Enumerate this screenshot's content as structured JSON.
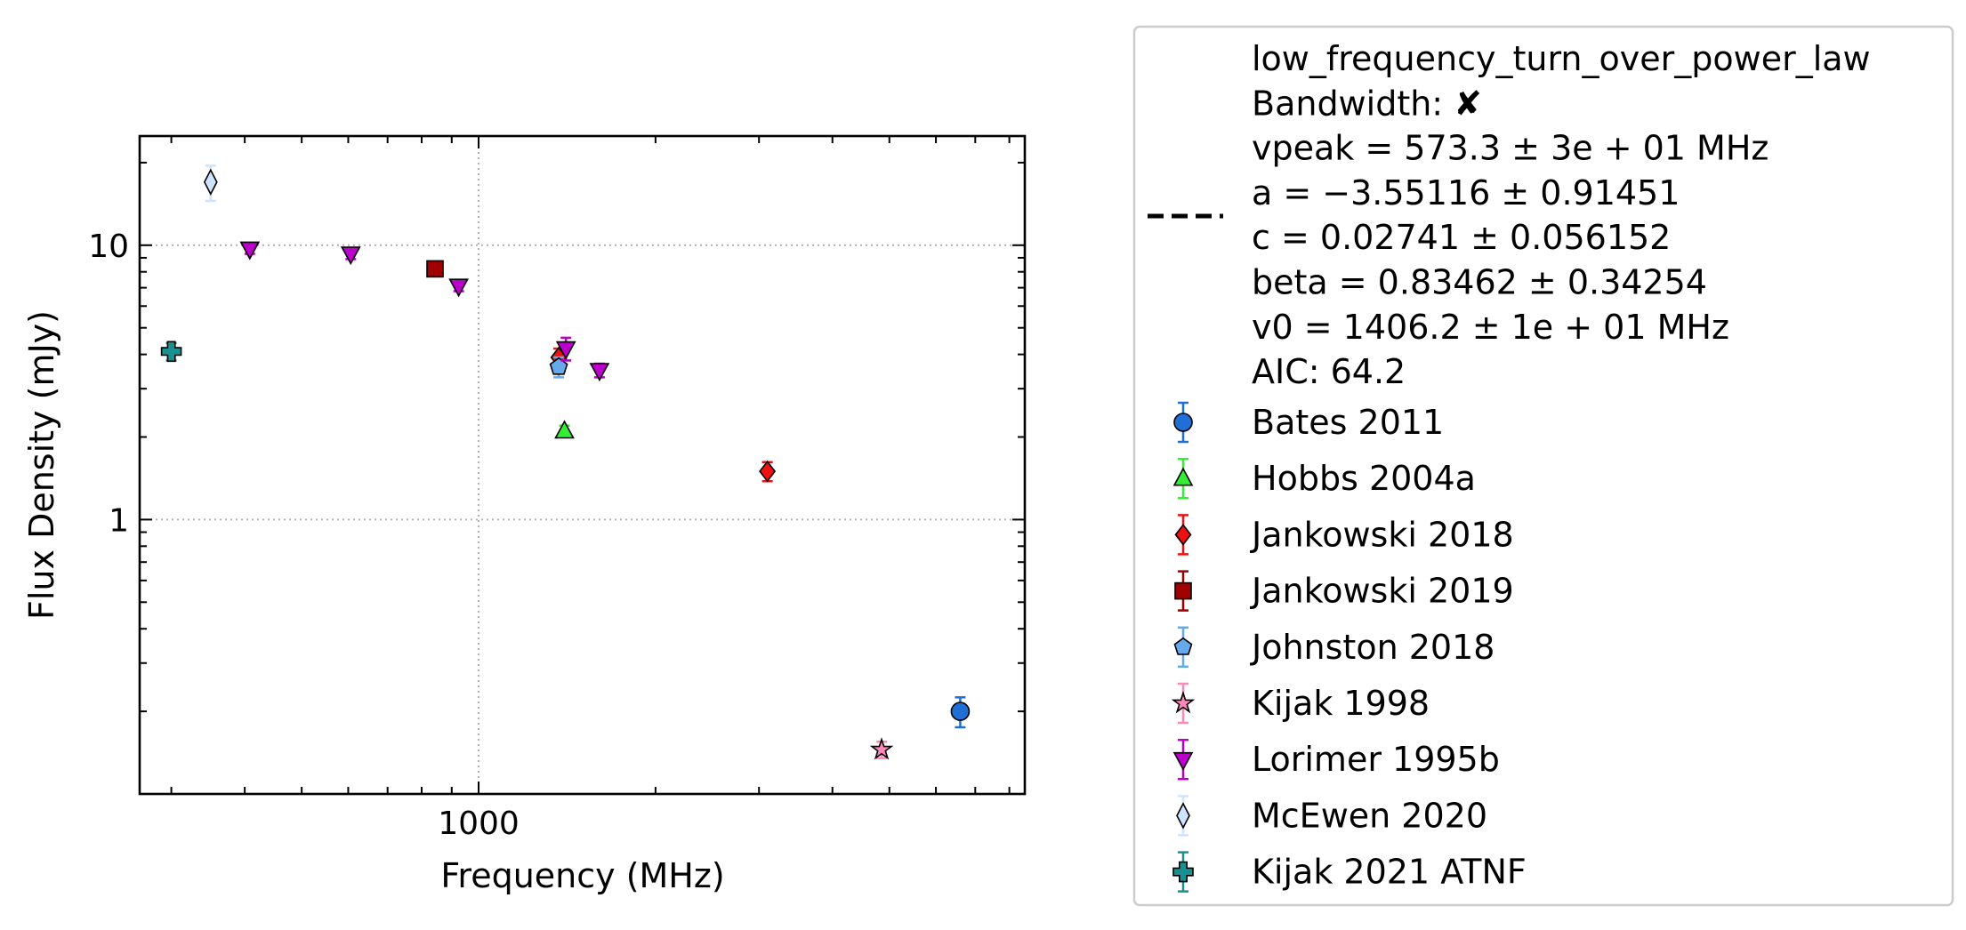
{
  "chart_data": {
    "type": "scatter",
    "xlabel": "Frequency (MHz)",
    "ylabel": "Flux Density (mJy)",
    "xscale": "log",
    "yscale": "log",
    "xlim": [
      265,
      8500
    ],
    "ylim": [
      0.1,
      25
    ],
    "xticks": [
      {
        "value": 1000,
        "label": "1000"
      }
    ],
    "yticks": [
      {
        "value": 1,
        "label": "1"
      },
      {
        "value": 10,
        "label": "10"
      }
    ],
    "grid": true,
    "legend_position": "outside-right",
    "fit": {
      "label_lines": [
        "low_frequency_turn_over_power_law",
        "Bandwidth: ✘",
        "vpeak = 573.3 ± 3e + 01 MHz",
        "a = −3.55116 ± 0.91451",
        "c = 0.02741 ± 0.056152",
        "beta = 0.83462 ± 0.34254",
        "v0 = 1406.2 ± 1e + 01 MHz",
        "AIC: 64.2"
      ],
      "vpeak": 573.3,
      "a": -3.55116,
      "c": 0.02741,
      "beta": 0.83462,
      "v0": 1406.2,
      "line_color": "#000000",
      "band_color": "#f5b27a"
    },
    "series": [
      {
        "name": "Bates 2011",
        "marker": "circle",
        "color": "#1f6fd6",
        "points": [
          {
            "x": 6600,
            "y": 0.2,
            "yerr": 0.025
          }
        ]
      },
      {
        "name": "Hobbs 2004a",
        "marker": "triangle-up",
        "color": "#33ee33",
        "points": [
          {
            "x": 1400,
            "y": 2.1,
            "yerr": 0.1
          }
        ]
      },
      {
        "name": "Jankowski 2018",
        "marker": "diamond",
        "color": "#ee1111",
        "points": [
          {
            "x": 1369,
            "y": 3.9,
            "yerr": 0.3
          },
          {
            "x": 3100,
            "y": 1.5,
            "yerr": 0.12
          }
        ]
      },
      {
        "name": "Jankowski 2019",
        "marker": "square",
        "color": "#a00000",
        "points": [
          {
            "x": 843,
            "y": 8.2,
            "yerr": 0.3
          }
        ]
      },
      {
        "name": "Johnston 2018",
        "marker": "pentagon",
        "color": "#66aaee",
        "points": [
          {
            "x": 1369,
            "y": 3.6,
            "yerr": 0.3
          }
        ]
      },
      {
        "name": "Kijak 1998",
        "marker": "star",
        "color": "#ff88bb",
        "points": [
          {
            "x": 4850,
            "y": 0.145,
            "yerr": 0.01
          }
        ]
      },
      {
        "name": "Lorimer 1995b",
        "marker": "triangle-down",
        "color": "#bb00cc",
        "points": [
          {
            "x": 408,
            "y": 9.7,
            "yerr": 0.4
          },
          {
            "x": 606,
            "y": 9.3,
            "yerr": 0.4
          },
          {
            "x": 925,
            "y": 7.1,
            "yerr": 0.3
          },
          {
            "x": 1408,
            "y": 4.2,
            "yerr": 0.4
          },
          {
            "x": 1606,
            "y": 3.5,
            "yerr": 0.2
          }
        ]
      },
      {
        "name": "McEwen 2020",
        "marker": "thin-diamond",
        "color": "#cce4ff",
        "points": [
          {
            "x": 350,
            "y": 17,
            "yerr": 2.5
          }
        ]
      },
      {
        "name": "Kijak 2021 ATNF",
        "marker": "plus",
        "color": "#1a9090",
        "points": [
          {
            "x": 300,
            "y": 4.1,
            "yerr": 0.3
          }
        ]
      }
    ]
  }
}
